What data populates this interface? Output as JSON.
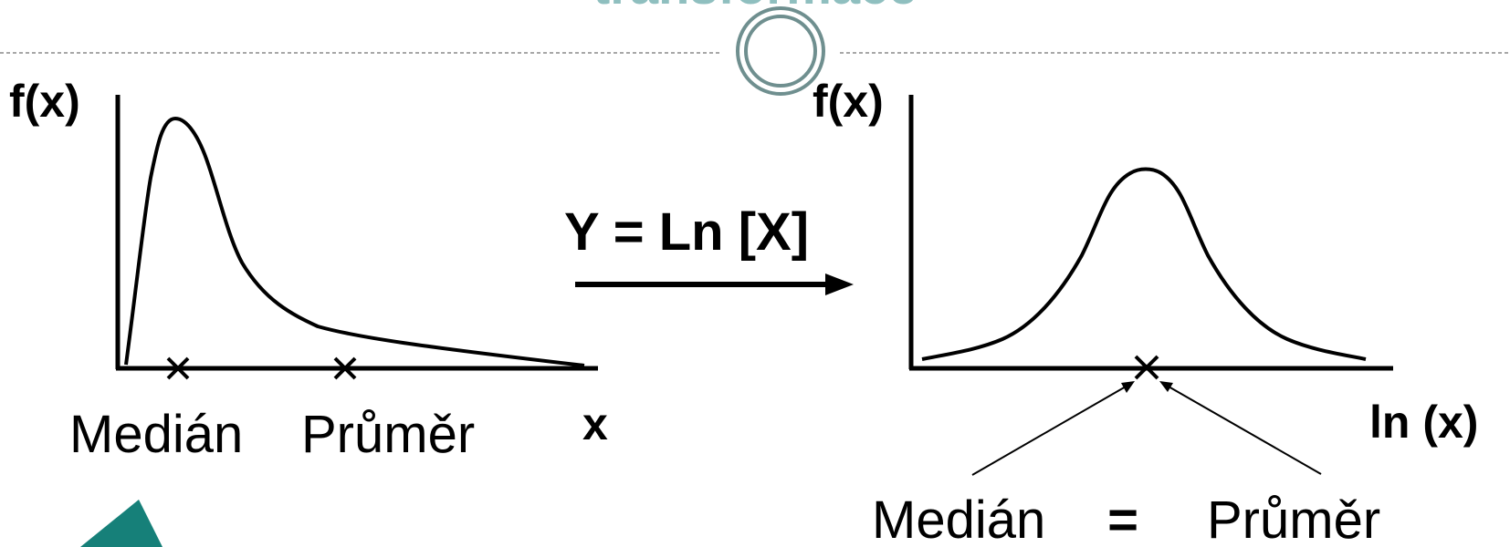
{
  "slide": {
    "partial_title": "transformace"
  },
  "left_plot": {
    "y_label": "f(x)",
    "x_label": "x",
    "median_label": "Medián",
    "mean_label": "Průměr",
    "marker_symbol": "×"
  },
  "transform": {
    "formula": "Y = Ln [X]"
  },
  "right_plot": {
    "y_label": "f(x)",
    "x_label": "ln (x)",
    "median_label": "Medián",
    "equals": "=",
    "mean_label": "Průměr",
    "marker_symbol": "×"
  },
  "colors": {
    "line": "#000000",
    "divider": "#8a8a8a",
    "ornament": "#6f8f8f",
    "accent": "#168079",
    "title": "#8fbfbf"
  }
}
